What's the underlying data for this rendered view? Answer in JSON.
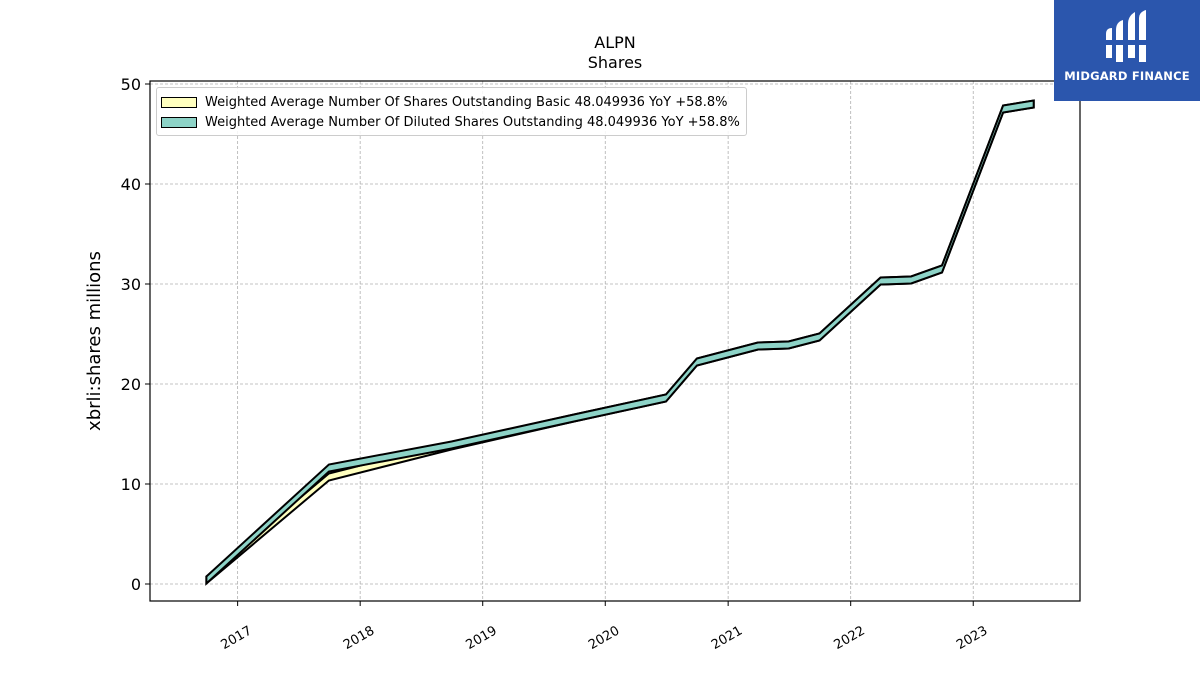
{
  "logo": {
    "text": "MIDGARD FINANCE",
    "color": "#2b56ad"
  },
  "chart_data": {
    "type": "area",
    "title": "ALPN",
    "subtitle": "Shares",
    "xlabel": "",
    "ylabel": "xbrli:shares millions",
    "ylim": [
      -1.7,
      50.3
    ],
    "yticks": [
      0,
      10,
      20,
      30,
      40,
      50
    ],
    "xlim": [
      "2016-04-15",
      "2023-11-15"
    ],
    "xticks": [
      "2017",
      "2018",
      "2019",
      "2020",
      "2021",
      "2022",
      "2023"
    ],
    "grid": true,
    "legend_position": "top-left",
    "series": [
      {
        "name": "Weighted Average Number Of Shares Outstanding Basic  48.049936 YoY +58.8%",
        "color": "#ffffbf",
        "x": [
          "2016-09-30",
          "2017-09-30",
          "2018-09-30",
          "2019-09-30",
          "2020-06-30",
          "2020-09-30",
          "2021-03-31",
          "2021-06-30",
          "2021-09-30",
          "2022-03-31",
          "2022-06-30",
          "2022-09-30",
          "2023-03-31",
          "2023-06-30"
        ],
        "values": [
          0.4,
          10.7,
          13.8,
          16.6,
          18.6,
          22.2,
          23.8,
          23.9,
          24.7,
          30.3,
          30.4,
          31.5,
          47.5,
          48.0
        ]
      },
      {
        "name": "Weighted Average Number Of Diluted Shares Outstanding  48.049936 YoY +58.8%",
        "color": "#8dd3c7",
        "x": [
          "2016-09-30",
          "2017-09-30",
          "2018-09-30",
          "2019-09-30",
          "2020-06-30",
          "2020-09-30",
          "2021-03-31",
          "2021-06-30",
          "2021-09-30",
          "2022-03-31",
          "2022-06-30",
          "2022-09-30",
          "2023-03-31",
          "2023-06-30"
        ],
        "values": [
          0.4,
          11.6,
          13.9,
          16.6,
          18.6,
          22.2,
          23.8,
          23.9,
          24.7,
          30.3,
          30.4,
          31.5,
          47.5,
          48.0
        ]
      }
    ]
  }
}
